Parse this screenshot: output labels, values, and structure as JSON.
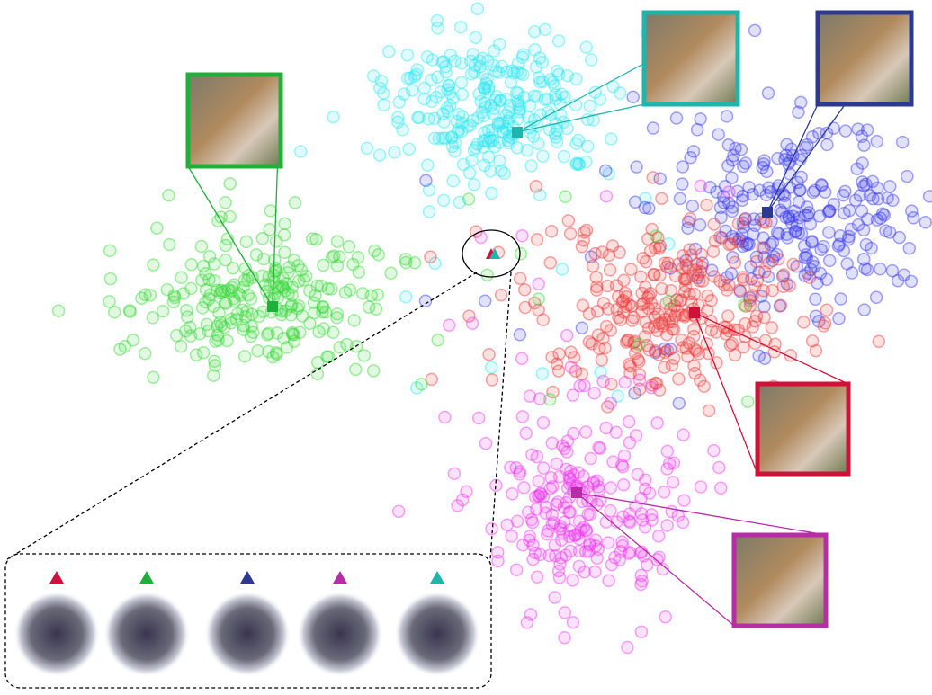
{
  "clusters": [
    {
      "color": "#2ee6f0",
      "frame": "#1fb5ac"
    },
    {
      "color": "#3535ee",
      "frame": "#2b3990"
    },
    {
      "color": "#ee3535",
      "frame": "#cf1239"
    },
    {
      "color": "#35d835",
      "frame": "#20b03a"
    },
    {
      "color": "#ee35ee",
      "frame": "#b52ea6"
    }
  ]
}
